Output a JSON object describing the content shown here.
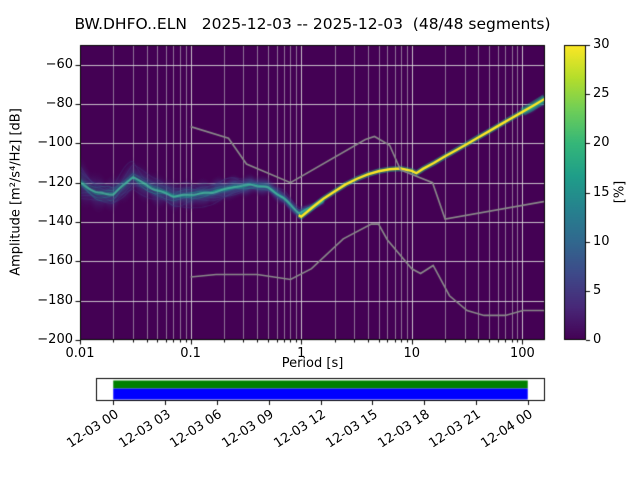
{
  "title": "BW.DHFO..ELN   2025-12-03 -- 2025-12-03  (48/48 segments)",
  "axes": {
    "xlabel": "Period [s]",
    "ylabel": "Amplitude [m²/s⁴/Hz] [dB]"
  },
  "colorbar": {
    "label": "[%]"
  },
  "chart_data": {
    "type": "heatmap",
    "subtype": "ppsd-probability-density",
    "station": "BW.DHFO..ELN",
    "date_range": "2025-12-03 -- 2025-12-03",
    "segments_used": 48,
    "segments_total": 48,
    "xscale": "log",
    "xlim": [
      0.01,
      160
    ],
    "ylim": [
      -200,
      -50
    ],
    "grid": true,
    "background_color": "#440154",
    "grid_major_color": "rgba(222,222,222,0.85)",
    "grid_minor_color": "rgba(205,205,205,0.55)",
    "x_ticks": [
      {
        "v": 0.01,
        "label": "0.01"
      },
      {
        "v": 0.1,
        "label": "0.1"
      },
      {
        "v": 1,
        "label": "1"
      },
      {
        "v": 10,
        "label": "10"
      },
      {
        "v": 100,
        "label": "100"
      }
    ],
    "y_ticks": [
      {
        "v": -60,
        "label": "−60"
      },
      {
        "v": -80,
        "label": "−80"
      },
      {
        "v": -100,
        "label": "−100"
      },
      {
        "v": -120,
        "label": "−120"
      },
      {
        "v": -140,
        "label": "−140"
      },
      {
        "v": -160,
        "label": "−160"
      },
      {
        "v": -180,
        "label": "−180"
      },
      {
        "v": -200,
        "label": "−200"
      }
    ],
    "colorbar": {
      "min": 0,
      "max": 30,
      "label": "[%]",
      "ticks": [
        {
          "v": 0,
          "label": "0"
        },
        {
          "v": 5,
          "label": "5"
        },
        {
          "v": 10,
          "label": "10"
        },
        {
          "v": 15,
          "label": "15"
        },
        {
          "v": 20,
          "label": "20"
        },
        {
          "v": 25,
          "label": "25"
        },
        {
          "v": 30,
          "label": "30"
        }
      ],
      "colormap": "viridis",
      "stops": [
        [
          0.0,
          "#440154"
        ],
        [
          0.111,
          "#482878"
        ],
        [
          0.222,
          "#3e4989"
        ],
        [
          0.333,
          "#31688e"
        ],
        [
          0.444,
          "#26828e"
        ],
        [
          0.556,
          "#1f9e89"
        ],
        [
          0.667,
          "#35b779"
        ],
        [
          0.778,
          "#6ece58"
        ],
        [
          0.889,
          "#b5de2b"
        ],
        [
          1.0,
          "#fde725"
        ]
      ]
    },
    "psd_mode_line": [
      [
        0.95,
        -136.5
      ],
      [
        1.0,
        -137.3
      ],
      [
        1.3,
        -132.0
      ],
      [
        1.6,
        -128.0
      ],
      [
        2.0,
        -124.5
      ],
      [
        2.5,
        -121.0
      ],
      [
        3.2,
        -118.0
      ],
      [
        4.0,
        -115.8
      ],
      [
        5.0,
        -114.2
      ],
      [
        6.3,
        -113.2
      ],
      [
        7.9,
        -112.8
      ],
      [
        10.0,
        -114.0
      ],
      [
        11.0,
        -115.2
      ],
      [
        12.6,
        -113.0
      ],
      [
        15.8,
        -110.0
      ],
      [
        20.0,
        -106.6
      ],
      [
        25.1,
        -103.5
      ],
      [
        31.6,
        -100.3
      ],
      [
        39.8,
        -97.0
      ],
      [
        50.1,
        -93.8
      ],
      [
        63.1,
        -90.5
      ],
      [
        79.4,
        -87.2
      ],
      [
        100.0,
        -84.0
      ],
      [
        126.0,
        -80.8
      ],
      [
        160.0,
        -77.3
      ]
    ],
    "psd_clouds": [
      [
        [
          0.01,
          -120.0,
          11.0
        ],
        [
          0.014,
          -125.0,
          9.0
        ],
        [
          0.02,
          -126.0,
          8.0
        ],
        [
          0.03,
          -117.0,
          9.0
        ],
        [
          0.045,
          -123.0,
          8.0
        ],
        [
          0.07,
          -127.0,
          7.0
        ],
        [
          0.1,
          -126.0,
          7.0
        ],
        [
          0.16,
          -125.0,
          6.5
        ],
        [
          0.25,
          -122.0,
          5.5
        ],
        [
          0.35,
          -121.0,
          5.0
        ],
        [
          0.5,
          -122.5,
          4.5
        ],
        [
          0.7,
          -128.0,
          4.0
        ],
        [
          0.95,
          -135.5,
          3.0
        ],
        [
          1.26,
          -132.5,
          2.5
        ],
        [
          1.6,
          -129.0,
          2.0
        ]
      ],
      [
        [
          100.0,
          -84.0,
          2.0
        ],
        [
          126.0,
          -81.0,
          2.5
        ],
        [
          145.0,
          -79.0,
          3.2
        ],
        [
          160.0,
          -77.5,
          4.0
        ]
      ]
    ],
    "mode_line_color": "#fde725",
    "cloud_core_color": "#22a884",
    "noise_models": {
      "color": "#8a8a8a",
      "nhnm": [
        [
          0.1,
          -91.5
        ],
        [
          0.22,
          -97.4
        ],
        [
          0.32,
          -110.5
        ],
        [
          0.8,
          -120.0
        ],
        [
          3.8,
          -98.1
        ],
        [
          4.6,
          -96.5
        ],
        [
          6.3,
          -101.0
        ],
        [
          7.9,
          -113.5
        ],
        [
          15.4,
          -120.0
        ],
        [
          20.0,
          -138.5
        ],
        [
          160.0,
          -129.5
        ]
      ],
      "nlnm": [
        [
          0.1,
          -168.0
        ],
        [
          0.17,
          -166.7
        ],
        [
          0.4,
          -166.7
        ],
        [
          0.8,
          -169.2
        ],
        [
          1.24,
          -163.7
        ],
        [
          2.4,
          -148.6
        ],
        [
          4.3,
          -141.1
        ],
        [
          5.0,
          -141.1
        ],
        [
          6.0,
          -149.0
        ],
        [
          10.0,
          -163.8
        ],
        [
          12.0,
          -166.2
        ],
        [
          15.6,
          -162.1
        ],
        [
          21.9,
          -177.5
        ],
        [
          31.6,
          -185.0
        ],
        [
          45.0,
          -187.5
        ],
        [
          70.0,
          -187.5
        ],
        [
          101.0,
          -185.0
        ],
        [
          154.0,
          -185.0
        ],
        [
          160.0,
          -185.1
        ]
      ]
    },
    "timeline": {
      "hours_range": [
        -1,
        25
      ],
      "tick_hours": [
        0,
        3,
        6,
        9,
        12,
        15,
        18,
        21,
        24
      ],
      "tick_labels": [
        "12-03 00",
        "12-03 03",
        "12-03 06",
        "12-03 09",
        "12-03 12",
        "12-03 15",
        "12-03 18",
        "12-03 21",
        "12-04 00"
      ],
      "coverage_bars": [
        {
          "color": "#008000",
          "start_h": 0,
          "end_h": 24
        },
        {
          "color": "#0000ff",
          "start_h": 0,
          "end_h": 24
        }
      ]
    }
  }
}
